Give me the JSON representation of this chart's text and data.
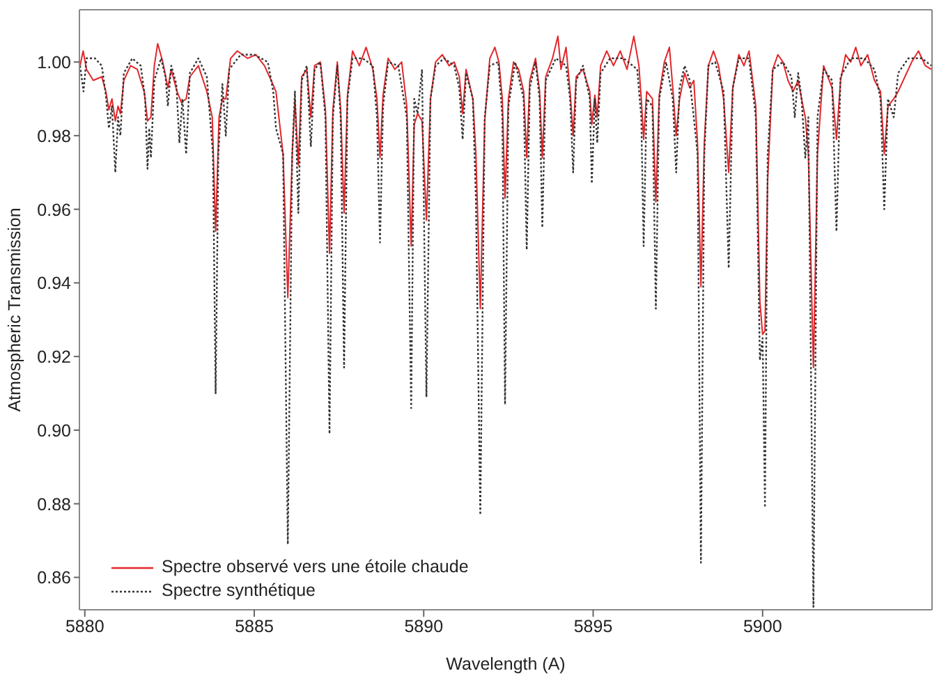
{
  "chart_data": {
    "type": "line",
    "xlabel": "Wavelength (A)",
    "ylabel": "Atmospheric Transmission",
    "xlim": [
      5879.84,
      5905.0
    ],
    "xticks": [
      5880,
      5885,
      5890,
      5895,
      5900
    ],
    "ylim": [
      0.8512,
      1.0142
    ],
    "yticks": [
      0.86,
      0.88,
      {
        "value": 0.9,
        "label": "0.90"
      },
      0.92,
      0.94,
      0.96,
      0.98,
      {
        "value": 1,
        "label": "1.00"
      }
    ],
    "legend": "bottom left",
    "marker": "none",
    "series": [
      {
        "name": "Spectre observé vers une étoile chaude",
        "color": "#e3262a",
        "line_style": "solid",
        "x": [
          5879.86,
          5879.95,
          5880.05,
          5880.25,
          5880.5,
          5880.62,
          5880.71,
          5880.8,
          5880.9,
          5880.98,
          5881.05,
          5881.15,
          5881.35,
          5881.55,
          5881.75,
          5881.85,
          5881.95,
          5882.05,
          5882.15,
          5882.3,
          5882.45,
          5882.55,
          5882.72,
          5882.85,
          5882.99,
          5883.1,
          5883.35,
          5883.6,
          5883.76,
          5883.86,
          5883.96,
          5884.06,
          5884.16,
          5884.3,
          5884.5,
          5884.8,
          5885.05,
          5885.3,
          5885.5,
          5885.64,
          5885.85,
          5885.99,
          5886.12,
          5886.2,
          5886.3,
          5886.4,
          5886.55,
          5886.67,
          5886.78,
          5886.95,
          5887.1,
          5887.22,
          5887.32,
          5887.45,
          5887.55,
          5887.65,
          5887.75,
          5887.9,
          5888.1,
          5888.3,
          5888.5,
          5888.62,
          5888.71,
          5888.8,
          5888.95,
          5889.15,
          5889.35,
          5889.5,
          5889.63,
          5889.72,
          5889.82,
          5889.95,
          5890.08,
          5890.2,
          5890.35,
          5890.55,
          5890.75,
          5890.9,
          5891.05,
          5891.15,
          5891.25,
          5891.45,
          5891.54,
          5891.67,
          5891.8,
          5891.95,
          5892.1,
          5892.22,
          5892.32,
          5892.4,
          5892.5,
          5892.65,
          5892.8,
          5892.95,
          5893.04,
          5893.13,
          5893.3,
          5893.42,
          5893.5,
          5893.6,
          5893.8,
          5893.96,
          5894.05,
          5894.2,
          5894.32,
          5894.41,
          5894.5,
          5894.7,
          5894.9,
          5894.96,
          5895.05,
          5895.12,
          5895.22,
          5895.4,
          5895.6,
          5895.8,
          5896.0,
          5896.2,
          5896.35,
          5896.42,
          5896.49,
          5896.58,
          5896.75,
          5896.85,
          5896.95,
          5897.1,
          5897.25,
          5897.35,
          5897.45,
          5897.55,
          5897.7,
          5897.85,
          5897.97,
          5898.08,
          5898.18,
          5898.28,
          5898.4,
          5898.55,
          5898.7,
          5898.85,
          5899.0,
          5899.12,
          5899.3,
          5899.45,
          5899.6,
          5899.8,
          5899.92,
          5900.0,
          5900.07,
          5900.15,
          5900.3,
          5900.45,
          5900.6,
          5900.75,
          5900.9,
          5901.05,
          5901.15,
          5901.26,
          5901.35,
          5901.5,
          5901.62,
          5901.8,
          5902.05,
          5902.18,
          5902.3,
          5902.45,
          5902.6,
          5902.75,
          5902.9,
          5903.1,
          5903.3,
          5903.48,
          5903.59,
          5903.7,
          5903.87,
          5904.0,
          5904.2,
          5904.4,
          5904.6,
          5904.8,
          5904.98
        ],
        "values": [
          0.999,
          1.003,
          0.998,
          0.995,
          0.996,
          0.992,
          0.987,
          0.99,
          0.984,
          0.988,
          0.986,
          0.995,
          0.999,
          0.998,
          0.992,
          0.984,
          0.985,
          0.999,
          1.005,
          1.0,
          0.993,
          0.998,
          0.992,
          0.989,
          0.99,
          0.996,
          0.999,
          0.992,
          0.985,
          0.954,
          0.985,
          0.99,
          0.99,
          1.001,
          1.003,
          1.001,
          1.002,
          0.999,
          0.995,
          0.992,
          0.975,
          0.936,
          0.975,
          0.99,
          0.972,
          0.996,
          0.998,
          0.985,
          0.999,
          1.0,
          0.987,
          0.948,
          0.987,
          1.0,
          0.987,
          0.959,
          0.991,
          1.003,
          0.999,
          1.004,
          0.998,
          0.99,
          0.974,
          0.991,
          1.001,
          0.998,
          1.0,
          0.988,
          0.95,
          0.983,
          0.986,
          0.984,
          0.957,
          0.99,
          1.0,
          1.002,
          0.999,
          1.0,
          0.996,
          0.986,
          0.998,
          0.99,
          0.975,
          0.933,
          0.984,
          1.001,
          1.004,
          1.0,
          0.99,
          0.963,
          0.99,
          1.0,
          0.998,
          0.992,
          0.974,
          0.995,
          1.001,
          0.992,
          0.974,
          0.996,
          1.001,
          1.007,
          0.998,
          1.004,
          0.992,
          0.98,
          0.996,
          0.998,
          0.992,
          0.983,
          0.991,
          0.985,
          0.999,
          1.003,
          0.999,
          1.003,
          0.998,
          1.007,
          0.999,
          0.99,
          0.979,
          0.992,
          0.99,
          0.962,
          0.991,
          1.0,
          1.004,
          0.993,
          0.98,
          0.99,
          0.997,
          0.993,
          0.995,
          0.978,
          0.939,
          0.978,
          0.999,
          1.003,
          0.999,
          0.99,
          0.97,
          0.993,
          1.002,
          0.999,
          1.003,
          0.988,
          0.935,
          0.926,
          0.927,
          0.968,
          0.998,
          1.002,
          1.0,
          0.995,
          0.992,
          0.995,
          0.99,
          0.985,
          0.975,
          0.917,
          0.975,
          0.999,
          0.993,
          0.979,
          0.995,
          1.002,
          1.0,
          1.004,
          0.999,
          1.002,
          0.995,
          0.992,
          0.975,
          0.988,
          0.99,
          0.992,
          0.996,
          1.0,
          1.003,
          0.999,
          0.998
        ]
      },
      {
        "name": "Spectre synthétique",
        "color": "#333333",
        "line_style": "dotted",
        "x": [
          5879.86,
          5879.96,
          5880.05,
          5880.3,
          5880.5,
          5880.62,
          5880.71,
          5880.8,
          5880.9,
          5880.98,
          5881.05,
          5881.15,
          5881.4,
          5881.65,
          5881.78,
          5881.85,
          5881.9,
          5881.95,
          5882.05,
          5882.25,
          5882.38,
          5882.45,
          5882.55,
          5882.7,
          5882.79,
          5882.88,
          5882.99,
          5883.1,
          5883.35,
          5883.6,
          5883.78,
          5883.86,
          5883.94,
          5884.06,
          5884.16,
          5884.26,
          5884.6,
          5885.0,
          5885.4,
          5885.56,
          5885.64,
          5885.85,
          5885.99,
          5886.12,
          5886.2,
          5886.3,
          5886.4,
          5886.55,
          5886.67,
          5886.78,
          5886.95,
          5887.1,
          5887.22,
          5887.32,
          5887.45,
          5887.55,
          5887.65,
          5887.75,
          5887.9,
          5888.2,
          5888.5,
          5888.62,
          5888.71,
          5888.8,
          5888.95,
          5889.25,
          5889.5,
          5889.63,
          5889.72,
          5889.82,
          5889.95,
          5890.08,
          5890.2,
          5890.35,
          5890.6,
          5890.9,
          5891.05,
          5891.15,
          5891.25,
          5891.45,
          5891.54,
          5891.67,
          5891.8,
          5891.95,
          5892.2,
          5892.32,
          5892.4,
          5892.5,
          5892.7,
          5892.95,
          5893.04,
          5893.13,
          5893.3,
          5893.42,
          5893.5,
          5893.6,
          5893.9,
          5894.2,
          5894.32,
          5894.41,
          5894.5,
          5894.7,
          5894.9,
          5894.96,
          5895.05,
          5895.12,
          5895.22,
          5895.5,
          5895.9,
          5896.3,
          5896.42,
          5896.49,
          5896.58,
          5896.75,
          5896.85,
          5896.95,
          5897.15,
          5897.35,
          5897.45,
          5897.55,
          5897.7,
          5897.85,
          5897.97,
          5898.08,
          5898.18,
          5898.28,
          5898.4,
          5898.6,
          5898.85,
          5899.0,
          5899.12,
          5899.3,
          5899.6,
          5899.8,
          5899.92,
          5900.0,
          5900.07,
          5900.15,
          5900.3,
          5900.6,
          5900.85,
          5900.95,
          5901.05,
          5901.15,
          5901.26,
          5901.35,
          5901.5,
          5901.62,
          5901.8,
          5902.05,
          5902.18,
          5902.3,
          5902.6,
          5903.0,
          5903.3,
          5903.48,
          5903.59,
          5903.7,
          5903.87,
          5904.0,
          5904.3,
          5904.7,
          5904.98
        ],
        "values": [
          0.999,
          0.992,
          1.001,
          1.001,
          0.999,
          0.991,
          0.982,
          0.988,
          0.97,
          0.985,
          0.98,
          0.997,
          1.001,
          0.999,
          0.99,
          0.971,
          0.982,
          0.974,
          0.995,
          1.001,
          0.996,
          0.988,
          0.999,
          0.994,
          0.978,
          0.99,
          0.975,
          0.997,
          1.001,
          0.996,
          0.975,
          0.91,
          0.975,
          0.994,
          0.98,
          0.998,
          1.002,
          1.002,
          1.0,
          0.992,
          0.982,
          0.975,
          0.869,
          0.975,
          0.992,
          0.959,
          0.995,
          0.999,
          0.977,
          0.998,
          1.0,
          0.985,
          0.899,
          0.985,
          0.999,
          0.985,
          0.917,
          0.99,
          1.001,
          1.001,
          0.999,
          0.985,
          0.951,
          0.988,
          1.0,
          0.999,
          0.985,
          0.906,
          0.99,
          0.986,
          0.998,
          0.909,
          0.99,
          0.999,
          1.001,
          0.999,
          0.993,
          0.979,
          0.997,
          0.99,
          0.963,
          0.877,
          0.985,
          0.999,
          1.0,
          0.985,
          0.907,
          0.988,
          1.0,
          0.99,
          0.949,
          0.993,
          1.0,
          0.99,
          0.955,
          0.995,
          1.001,
          0.999,
          0.99,
          0.97,
          0.995,
          0.999,
          0.99,
          0.967,
          0.99,
          0.978,
          0.997,
          1.001,
          1.001,
          0.998,
          0.985,
          0.95,
          0.99,
          0.988,
          0.933,
          0.99,
          1.0,
          0.99,
          0.97,
          0.993,
          0.999,
          0.995,
          0.985,
          0.975,
          0.864,
          0.975,
          0.999,
          1.0,
          0.992,
          0.944,
          0.993,
          1.001,
          1.001,
          0.985,
          0.919,
          0.925,
          0.879,
          0.975,
          0.998,
          1.0,
          0.996,
          0.985,
          0.997,
          0.99,
          0.974,
          0.985,
          0.852,
          0.985,
          0.998,
          0.995,
          0.954,
          0.996,
          1.001,
          1.001,
          0.998,
          0.99,
          0.96,
          0.99,
          0.985,
          0.997,
          1.001,
          1.001,
          0.999
        ]
      }
    ]
  }
}
